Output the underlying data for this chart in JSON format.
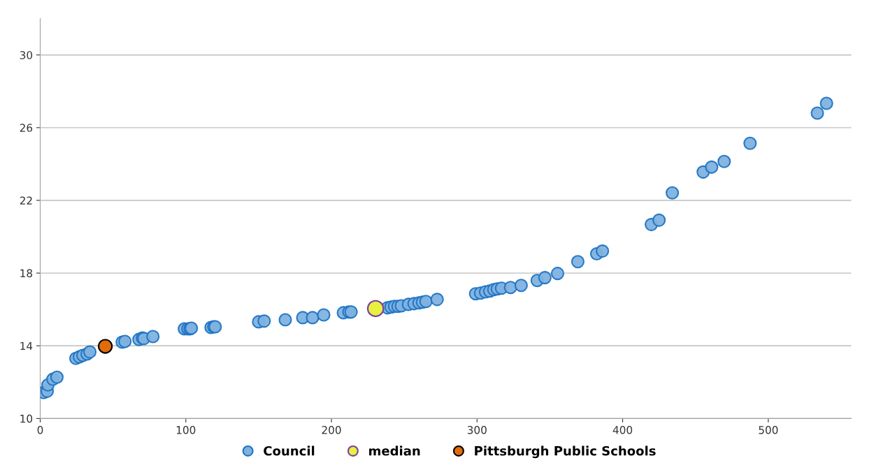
{
  "chart_data": {
    "type": "scatter",
    "xlim": [
      0,
      557
    ],
    "ylim": [
      10,
      32
    ],
    "xticks": [
      0,
      100,
      200,
      300,
      400,
      500
    ],
    "yticks": [
      10,
      14,
      18,
      22,
      26,
      30
    ],
    "grid": "y",
    "legend": "bottom",
    "marker": "circle",
    "series": [
      {
        "name": "Council",
        "color": "#7fb2df",
        "x": [
          2.4,
          4.8,
          5.3,
          8.7,
          11.5,
          24.5,
          26.9,
          29.3,
          32.2,
          34.1,
          56.3,
          58.2,
          67.8,
          70.2,
          71.2,
          77.4,
          99,
          101.4,
          102.9,
          103.8,
          117.3,
          119.2,
          120.2,
          150,
          153.8,
          168.3,
          180.3,
          187,
          194.7,
          208.2,
          212,
          213.5,
          238.5,
          240.9,
          243.3,
          245.7,
          248,
          252.9,
          256.7,
          260.1,
          262.5,
          264.9,
          272.6,
          299,
          302.4,
          305.8,
          308.7,
          311.5,
          313.9,
          316.8,
          323,
          330.3,
          341.3,
          346.6,
          355.3,
          369.2,
          382.2,
          386.1,
          419.7,
          425,
          434.1,
          455.3,
          461.1,
          469.7,
          487.5,
          533.7,
          540
        ],
        "values": [
          11.43,
          11.5,
          11.85,
          12.16,
          12.27,
          13.31,
          13.39,
          13.47,
          13.55,
          13.66,
          14.2,
          14.24,
          14.35,
          14.43,
          14.4,
          14.51,
          14.93,
          14.93,
          14.93,
          14.97,
          15.01,
          15.05,
          15.05,
          15.32,
          15.36,
          15.43,
          15.55,
          15.55,
          15.7,
          15.82,
          15.86,
          15.86,
          16.09,
          16.13,
          16.17,
          16.17,
          16.2,
          16.28,
          16.32,
          16.36,
          16.4,
          16.44,
          16.55,
          16.86,
          16.9,
          16.97,
          17.01,
          17.09,
          17.13,
          17.17,
          17.21,
          17.32,
          17.59,
          17.75,
          17.98,
          18.63,
          19.06,
          19.21,
          20.67,
          20.91,
          22.41,
          23.56,
          23.83,
          24.14,
          25.14,
          26.8,
          27.34
        ]
      },
      {
        "name": "median",
        "color": "#e8f040",
        "x": [
          230.3
        ],
        "values": [
          16.05
        ]
      },
      {
        "name": "Pittsburgh Public Schools",
        "color": "#e36c0a",
        "x": [
          44.7
        ],
        "values": [
          13.97
        ]
      }
    ]
  }
}
